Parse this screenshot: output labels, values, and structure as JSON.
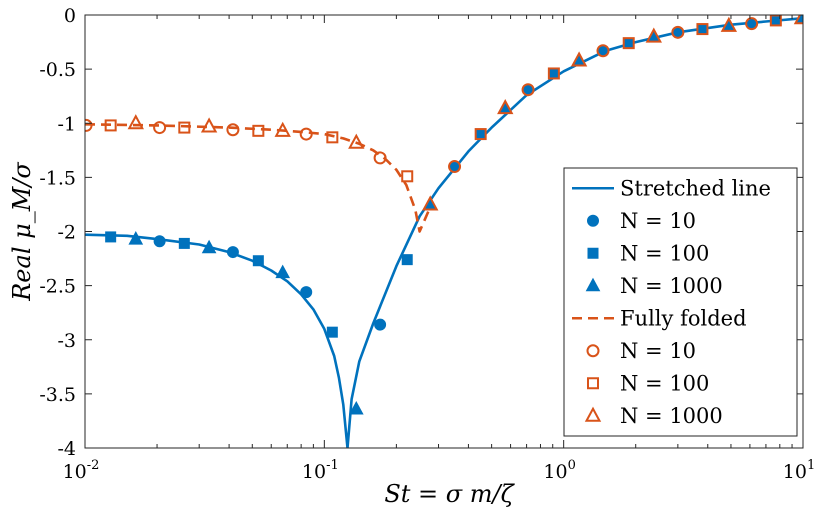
{
  "chart_data": {
    "type": "line",
    "x_scale": "log",
    "xlim": [
      0.01,
      10
    ],
    "ylim": [
      -4,
      0
    ],
    "x_ticks": [
      {
        "value": 0.01,
        "mantissa": "10",
        "exp": "-2"
      },
      {
        "value": 0.1,
        "mantissa": "10",
        "exp": "-1"
      },
      {
        "value": 1,
        "mantissa": "10",
        "exp": "0"
      },
      {
        "value": 10,
        "mantissa": "10",
        "exp": "1"
      }
    ],
    "y_ticks": [
      {
        "value": 0,
        "label": "0"
      },
      {
        "value": -0.5,
        "label": "-0.5"
      },
      {
        "value": -1,
        "label": "-1"
      },
      {
        "value": -1.5,
        "label": "-1.5"
      },
      {
        "value": -2,
        "label": "-2"
      },
      {
        "value": -2.5,
        "label": "-2.5"
      },
      {
        "value": -3,
        "label": "-3"
      },
      {
        "value": -3.5,
        "label": "-3.5"
      },
      {
        "value": -4,
        "label": "-4"
      }
    ],
    "xlabel": "St = σ m/ζ",
    "ylabel": "Real μ_M/σ",
    "colors": {
      "blue": "#0072BD",
      "orange": "#D95319"
    },
    "lines": [
      {
        "name": "Stretched line",
        "color": "#0072BD",
        "dash": "solid",
        "x": [
          0.01,
          0.015,
          0.02,
          0.03,
          0.04,
          0.05,
          0.06,
          0.07,
          0.08,
          0.09,
          0.1,
          0.11,
          0.115,
          0.12,
          0.125,
          0.13,
          0.14,
          0.16,
          0.2,
          0.25,
          0.3,
          0.4,
          0.5,
          0.7,
          1.0,
          1.5,
          2.0,
          3.0,
          5.0,
          7.0,
          10.0
        ],
        "y": [
          -2.03,
          -2.04,
          -2.07,
          -2.12,
          -2.19,
          -2.27,
          -2.36,
          -2.46,
          -2.58,
          -2.72,
          -2.9,
          -3.15,
          -3.35,
          -3.6,
          -4.0,
          -3.55,
          -3.2,
          -2.85,
          -2.32,
          -1.86,
          -1.6,
          -1.26,
          -1.04,
          -0.74,
          -0.52,
          -0.33,
          -0.25,
          -0.16,
          -0.09,
          -0.06,
          -0.03
        ]
      },
      {
        "name": "Fully folded",
        "color": "#D95319",
        "dash": "dashed",
        "x": [
          0.01,
          0.02,
          0.04,
          0.06,
          0.08,
          0.1,
          0.12,
          0.14,
          0.16,
          0.18,
          0.2,
          0.22,
          0.24,
          0.25,
          0.28
        ],
        "y": [
          -1.01,
          -1.02,
          -1.04,
          -1.06,
          -1.08,
          -1.1,
          -1.14,
          -1.19,
          -1.25,
          -1.33,
          -1.43,
          -1.57,
          -1.8,
          -2.0,
          -1.75
        ]
      }
    ],
    "markers": [
      {
        "name": "N = 10",
        "series": "Stretched line",
        "shape": "circle",
        "fill": true,
        "color": "#0072BD",
        "x": [
          0.0205,
          0.0415,
          0.084,
          0.171,
          0.35,
          0.71,
          1.46,
          3.0,
          6.1
        ],
        "y": [
          -2.09,
          -2.19,
          -2.56,
          -2.86,
          -1.4,
          -0.69,
          -0.33,
          -0.16,
          -0.08
        ]
      },
      {
        "name": "N = 100",
        "series": "Stretched line",
        "shape": "square",
        "fill": true,
        "color": "#0072BD",
        "x": [
          0.0128,
          0.026,
          0.053,
          0.108,
          0.222,
          0.45,
          0.91,
          1.87,
          3.8,
          7.7
        ],
        "y": [
          -2.05,
          -2.11,
          -2.27,
          -2.93,
          -2.26,
          -1.1,
          -0.54,
          -0.26,
          -0.13,
          -0.05
        ]
      },
      {
        "name": "N = 1000",
        "series": "Stretched line",
        "shape": "triangle",
        "fill": true,
        "color": "#0072BD",
        "x": [
          0.0163,
          0.033,
          0.067,
          0.136,
          0.277,
          0.57,
          1.16,
          2.38,
          4.9,
          9.9
        ],
        "y": [
          -2.07,
          -2.15,
          -2.38,
          -3.64,
          -1.75,
          -0.86,
          -0.42,
          -0.2,
          -0.1,
          -0.03
        ]
      },
      {
        "name": "N = 10",
        "series": "Fully folded",
        "shape": "circle",
        "fill": false,
        "color": "#D95319",
        "x": [
          0.0101,
          0.0205,
          0.0415,
          0.084,
          0.171,
          0.35,
          0.71,
          1.46,
          3.0,
          6.1
        ],
        "y": [
          -1.02,
          -1.04,
          -1.06,
          -1.1,
          -1.32,
          -1.4,
          -0.69,
          -0.33,
          -0.16,
          -0.08
        ]
      },
      {
        "name": "N = 100",
        "series": "Fully folded",
        "shape": "square",
        "fill": false,
        "color": "#D95319",
        "x": [
          0.0128,
          0.026,
          0.053,
          0.108,
          0.222,
          0.45,
          0.91,
          1.87,
          3.8,
          7.7
        ],
        "y": [
          -1.02,
          -1.04,
          -1.07,
          -1.13,
          -1.49,
          -1.1,
          -0.54,
          -0.26,
          -0.13,
          -0.05
        ]
      },
      {
        "name": "N = 1000",
        "series": "Fully folded",
        "shape": "triangle",
        "fill": false,
        "color": "#D95319",
        "x": [
          0.0163,
          0.033,
          0.067,
          0.136,
          0.277,
          0.57,
          1.16,
          2.38,
          4.9,
          9.9
        ],
        "y": [
          -1.0,
          -1.03,
          -1.07,
          -1.18,
          -1.75,
          -0.86,
          -0.42,
          -0.2,
          -0.1,
          -0.03
        ]
      }
    ],
    "legend": {
      "placement": "lower-right",
      "entries": [
        {
          "type": "line",
          "label": "Stretched line",
          "color": "#0072BD",
          "dash": "solid"
        },
        {
          "type": "marker",
          "label": "N = 10",
          "shape": "circle",
          "fill": true,
          "color": "#0072BD"
        },
        {
          "type": "marker",
          "label": "N = 100",
          "shape": "square",
          "fill": true,
          "color": "#0072BD"
        },
        {
          "type": "marker",
          "label": "N = 1000",
          "shape": "triangle",
          "fill": true,
          "color": "#0072BD"
        },
        {
          "type": "line",
          "label": "Fully folded",
          "color": "#D95319",
          "dash": "dashed"
        },
        {
          "type": "marker",
          "label": "N = 10",
          "shape": "circle",
          "fill": false,
          "color": "#D95319"
        },
        {
          "type": "marker",
          "label": "N = 100",
          "shape": "square",
          "fill": false,
          "color": "#D95319"
        },
        {
          "type": "marker",
          "label": "N = 1000",
          "shape": "triangle",
          "fill": false,
          "color": "#D95319"
        }
      ]
    }
  }
}
